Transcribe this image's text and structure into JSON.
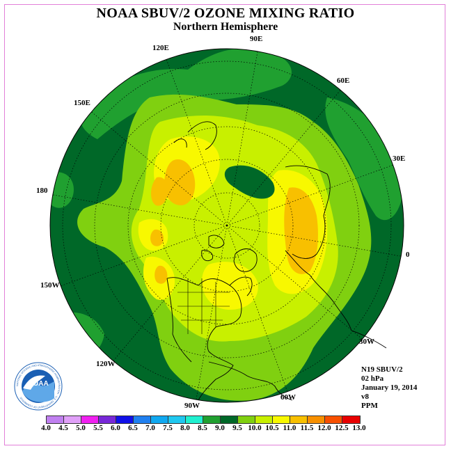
{
  "title": "NOAA SBUV/2 OZONE MIXING RATIO",
  "subtitle": "Northern Hemisphere",
  "longitude_labels": [
    "90E",
    "60E",
    "30E",
    "0",
    "30W",
    "60W",
    "90W",
    "120W",
    "150W",
    "180",
    "150E",
    "120E"
  ],
  "info": {
    "instrument": "N19 SBUV/2",
    "level": "02 hPa",
    "date": "January 19, 2014",
    "version": "v8",
    "units": "PPM"
  },
  "logo": {
    "text": "NOAA",
    "ring_text": "NATIONAL OCEANIC AND ATMOSPHERIC ADMINISTRATION · U.S. DEPARTMENT OF COMMERCE"
  },
  "colorbar": {
    "ticks": [
      "4.0",
      "4.5",
      "5.0",
      "5.5",
      "6.0",
      "6.5",
      "7.0",
      "7.5",
      "8.0",
      "8.5",
      "9.0",
      "9.5",
      "10.0",
      "10.5",
      "11.0",
      "11.5",
      "12.0",
      "12.5",
      "13.0"
    ],
    "colors": [
      "#c080f0",
      "#e0a0f8",
      "#f020f0",
      "#7828d8",
      "#1010e8",
      "#2080f0",
      "#10a8f0",
      "#20c8f0",
      "#20f0d0",
      "#20a030",
      "#006828",
      "#80d010",
      "#c8f000",
      "#f8f800",
      "#f8c000",
      "#f89000",
      "#f85000",
      "#e80000",
      "#985030"
    ]
  },
  "legend_colors": {
    "c85": "#20a030",
    "c90": "#006828",
    "c95": "#80d010",
    "c100": "#c8f000",
    "c105": "#f8f800",
    "c110": "#f8c000"
  }
}
